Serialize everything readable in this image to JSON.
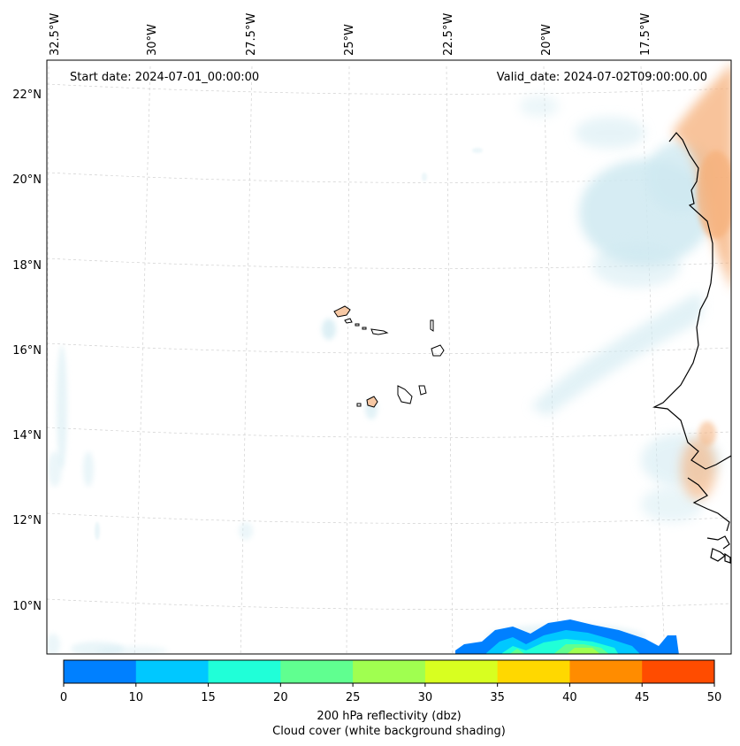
{
  "map": {
    "start_date": "Start date: 2024-07-01_00:00:00",
    "valid_date": "Valid_date: 2024-07-02T09:00:00.00",
    "lon_labels": [
      "32.5°W",
      "30°W",
      "27.5°W",
      "25°W",
      "22.5°W",
      "20°W",
      "17.5°W"
    ],
    "lat_labels": [
      "22°N",
      "20°N",
      "18°N",
      "16°N",
      "14°N",
      "12°N",
      "10°N"
    ],
    "gridlines": true
  },
  "colorbar": {
    "levels": [
      0,
      10,
      15,
      20,
      25,
      30,
      35,
      40,
      45,
      50
    ],
    "colors": [
      "#0080ff",
      "#00c8ff",
      "#20ffd8",
      "#60ff90",
      "#a0ff50",
      "#d8ff20",
      "#ffd800",
      "#ff8c00",
      "#ff4c00"
    ],
    "tick_labels": [
      "0",
      "10",
      "15",
      "20",
      "25",
      "30",
      "35",
      "40",
      "45",
      "50"
    ],
    "label_line1": "200 hPa reflectivity (dbz)",
    "label_line2": "Cloud cover (white background shading)"
  },
  "colors": {
    "cloud_blue": "#cfe9f1",
    "dust_orange": "#f6b07a",
    "coastline": "#000000"
  }
}
